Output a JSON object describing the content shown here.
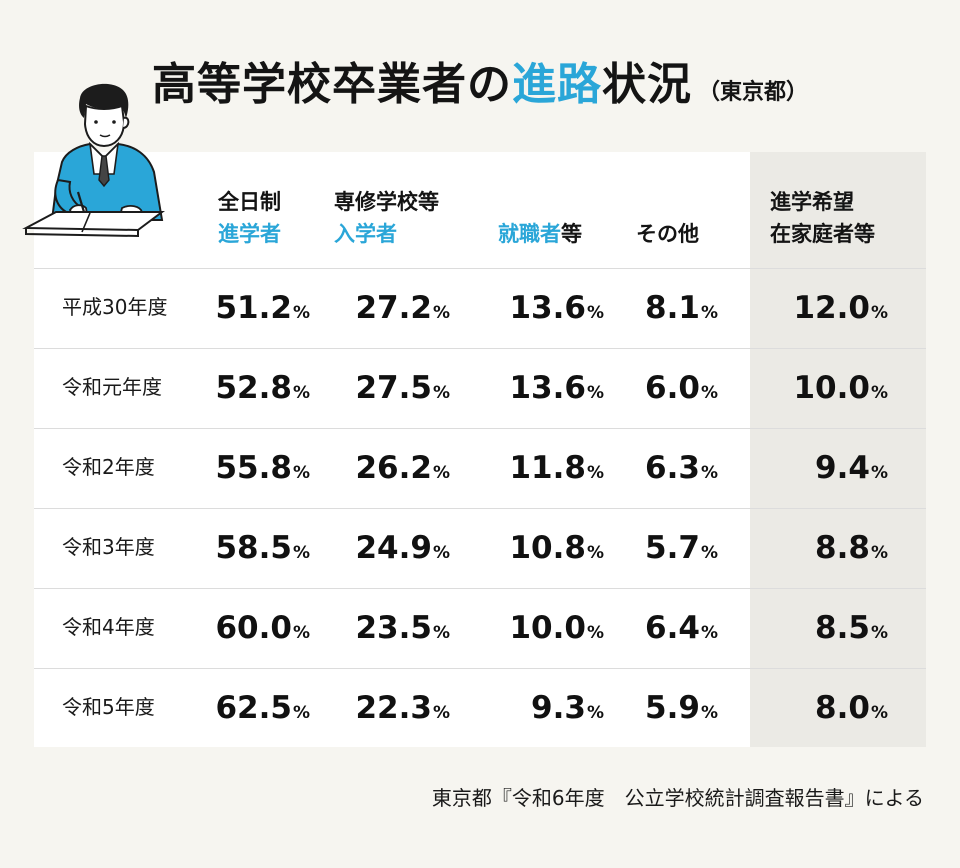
{
  "title": {
    "part1": "高等学校卒業者の",
    "accent": "進路",
    "part2": "状況",
    "paren": "（東京都）"
  },
  "chart_data": {
    "type": "table",
    "unit": "%",
    "columns": [
      {
        "line1": "全日制",
        "line1_color": "#141414",
        "line2": "進学者",
        "line2_color": "#2aa6d8"
      },
      {
        "line1": "専修学校等",
        "line1_color": "#141414",
        "line2": "入学者",
        "line2_color": "#2aa6d8"
      },
      {
        "line1": "",
        "line1_color": "#141414",
        "line2_blue": "就職者",
        "line2_rest": "等",
        "line2_color": "#2aa6d8"
      },
      {
        "line1": "",
        "line1_color": "#141414",
        "line2": "その他",
        "line2_color": "#141414"
      },
      {
        "line1": "進学希望",
        "line1_color": "#141414",
        "line2": "在家庭者等",
        "line2_color": "#141414"
      }
    ],
    "rows": [
      {
        "label": "平成30年度",
        "values": [
          "51.2",
          "27.2",
          "13.6",
          "8.1",
          "12.0"
        ]
      },
      {
        "label": "令和元年度",
        "values": [
          "52.8",
          "27.5",
          "13.6",
          "6.0",
          "10.0"
        ]
      },
      {
        "label": "令和2年度",
        "values": [
          "55.8",
          "26.2",
          "11.8",
          "6.3",
          "9.4"
        ]
      },
      {
        "label": "令和3年度",
        "values": [
          "58.5",
          "24.9",
          "10.8",
          "5.7",
          "8.8"
        ]
      },
      {
        "label": "令和4年度",
        "values": [
          "60.0",
          "23.5",
          "10.0",
          "6.4",
          "8.5"
        ]
      },
      {
        "label": "令和5年度",
        "values": [
          "62.5",
          "22.3",
          "9.3",
          "5.9",
          "8.0"
        ]
      }
    ],
    "highlight_column": 4,
    "highlight_color": "#ebeae5"
  },
  "source": "東京都『令和6年度　公立学校統計調査報告書』による",
  "illustration": "person-writing-icon"
}
